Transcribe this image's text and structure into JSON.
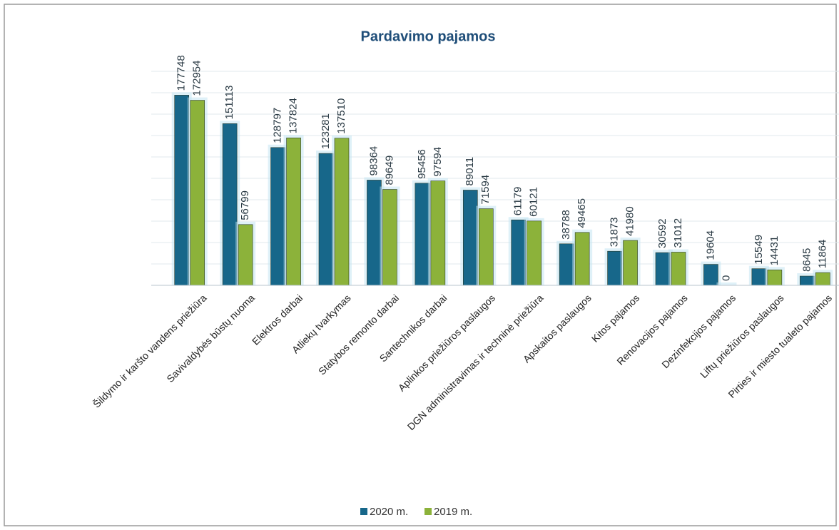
{
  "chart_data": {
    "type": "bar",
    "title": "Pardavimo pajamos",
    "categories": [
      "Šildymo ir karšto vandens priežiūra",
      "Savivaldybės būstų nuoma",
      "Elektros darbai",
      "Atliekų tvarkymas",
      "Statybos remonto darbai",
      "Santechnikos darbai",
      "Aplinkos priežiūros paslaugos",
      "DGN administravimas ir techninė priežiūra",
      "Apskaitos paslaugos",
      "Kitos pajamos",
      "Renovacijos pajamos",
      "Dezinfekcijos pajamos",
      "Liftų priežiūros paslaugos",
      "Pirties ir miesto tualeto pajamos"
    ],
    "series": [
      {
        "name": "2020 m.",
        "color": "#17678a",
        "values": [
          177748,
          151113,
          128797,
          123281,
          98364,
          95456,
          89011,
          61179,
          38788,
          31873,
          30592,
          19604,
          15549,
          8645
        ]
      },
      {
        "name": "2019 m.",
        "color": "#8cb23a",
        "values": [
          172954,
          56799,
          137824,
          137510,
          89649,
          97594,
          71594,
          60121,
          49465,
          41980,
          31012,
          0,
          14431,
          11864
        ]
      }
    ],
    "ylim": [
      0,
      200000
    ],
    "yticks": [
      0,
      20000,
      40000,
      60000,
      80000,
      100000,
      120000,
      140000,
      160000,
      180000,
      200000
    ],
    "grid": true
  }
}
